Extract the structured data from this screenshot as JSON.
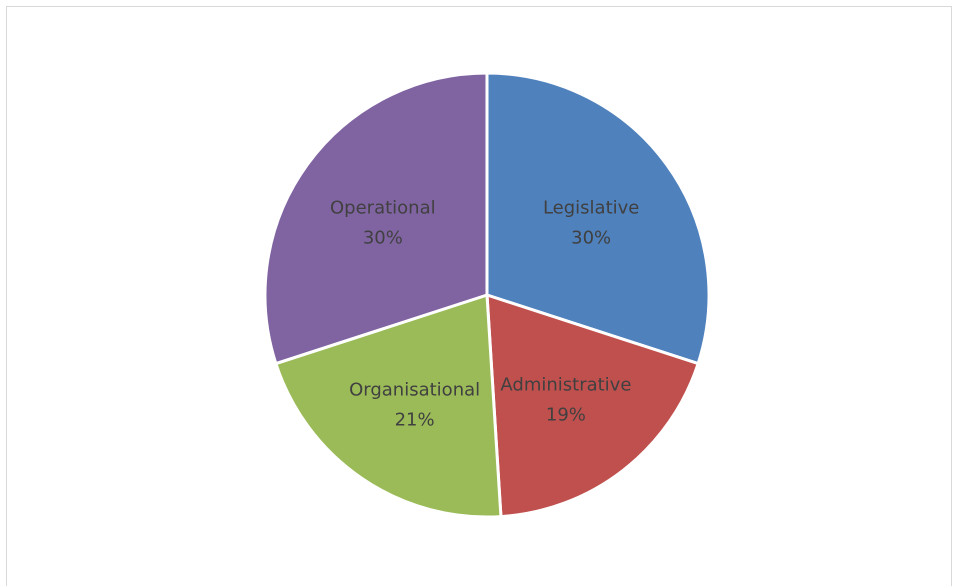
{
  "chart_data": {
    "type": "pie",
    "title": "",
    "categories": [
      "Legislative",
      "Administrative",
      "Organisational",
      "Operational"
    ],
    "values": [
      30,
      19,
      21,
      30
    ],
    "labels": [
      "30%",
      "19%",
      "21%",
      "30%"
    ],
    "colors": [
      "#4f81bd",
      "#c0504d",
      "#9bbb59",
      "#8064a2"
    ],
    "start_angle_deg": 0,
    "direction": "clockwise",
    "legend": "none",
    "data_labels": "category-and-percent-inside"
  }
}
